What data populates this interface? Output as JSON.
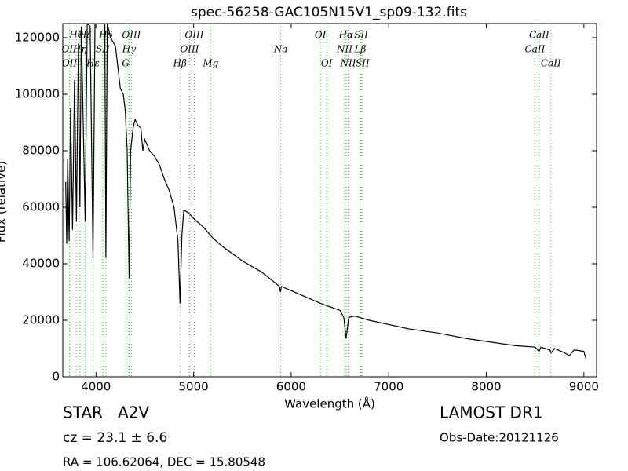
{
  "chart_data": {
    "type": "line",
    "title": "spec-56258-GAC105N15V1_sp09-132.fits",
    "xlabel": "Wavelength (Å)",
    "ylabel": "Flux (relative)",
    "xlim": [
      3660,
      9130
    ],
    "ylim": [
      0,
      125000
    ],
    "xticks": [
      4000,
      5000,
      6000,
      7000,
      8000,
      9000
    ],
    "yticks": [
      0,
      20000,
      40000,
      60000,
      80000,
      100000,
      120000
    ],
    "line_color": "#4a4",
    "x": [
      3690,
      3700,
      3710,
      3725,
      3740,
      3760,
      3780,
      3800,
      3820,
      3835,
      3850,
      3889,
      3910,
      3940,
      3970,
      3990,
      4060,
      4090,
      4102,
      4115,
      4150,
      4200,
      4250,
      4280,
      4300,
      4320,
      4340,
      4355,
      4380,
      4400,
      4430,
      4460,
      4480,
      4500,
      4550,
      4600,
      4650,
      4700,
      4750,
      4800,
      4840,
      4861,
      4880,
      4900,
      4950,
      5000,
      5100,
      5200,
      5300,
      5500,
      5700,
      5880,
      5890,
      5900,
      6100,
      6300,
      6500,
      6540,
      6563,
      6590,
      6650,
      6800,
      7000,
      7200,
      7500,
      7800,
      8000,
      8300,
      8500,
      8540,
      8560,
      8650,
      8665,
      8700,
      8800,
      8850,
      8900,
      9000,
      9020
    ],
    "series": [
      {
        "name": "flux",
        "color": "#000000",
        "values": [
          69000,
          47000,
          77000,
          48000,
          95000,
          52000,
          105000,
          55000,
          118000,
          60000,
          124000,
          55000,
          125000,
          124000,
          42000,
          125000,
          125000,
          125000,
          42000,
          125000,
          120000,
          117000,
          102000,
          100000,
          94000,
          80000,
          35000,
          80000,
          88000,
          91000,
          89000,
          88000,
          80000,
          84000,
          80000,
          78000,
          75000,
          70000,
          66000,
          60000,
          48000,
          26000,
          50000,
          59000,
          58000,
          56000,
          53000,
          49000,
          46000,
          41000,
          37000,
          32000,
          30000,
          32000,
          29000,
          26000,
          23500,
          21000,
          13500,
          21000,
          21500,
          20000,
          18500,
          17000,
          15500,
          13500,
          12500,
          11000,
          10500,
          9000,
          10500,
          9500,
          8500,
          10000,
          8500,
          7500,
          9500,
          9000,
          6500
        ]
      }
    ],
    "lines": [
      [
        {
          "label": "Hθ",
          "wavelength": 3798
        },
        {
          "label": "Hζ",
          "wavelength": 3889
        },
        {
          "label": "Hδ",
          "wavelength": 4102
        },
        {
          "label": "OIII",
          "wavelength": 4363
        },
        {
          "label": "OIII",
          "wavelength": 5007
        },
        {
          "label": "OI",
          "wavelength": 6300
        },
        {
          "label": "Hα",
          "wavelength": 6563
        },
        {
          "label": "SII",
          "wavelength": 6717
        },
        {
          "label": "CaII",
          "wavelength": 8542
        }
      ],
      [
        {
          "label": "OII",
          "wavelength": 3726
        },
        {
          "label": "Hη",
          "wavelength": 3835
        },
        {
          "label": "SII",
          "wavelength": 4069
        },
        {
          "label": "Hγ",
          "wavelength": 4340
        },
        {
          "label": "OIII",
          "wavelength": 4959
        },
        {
          "label": "Na",
          "wavelength": 5893
        },
        {
          "label": "NII",
          "wavelength": 6548
        },
        {
          "label": "Lβ",
          "wavelength": 6708
        },
        {
          "label": "CaII",
          "wavelength": 8498
        }
      ],
      [
        {
          "label": "OII",
          "wavelength": 3729
        },
        {
          "label": "Hε",
          "wavelength": 3970
        },
        {
          "label": "G",
          "wavelength": 4304
        },
        {
          "label": "Hβ",
          "wavelength": 4861
        },
        {
          "label": "Mg",
          "wavelength": 5175
        },
        {
          "label": "OI",
          "wavelength": 6364
        },
        {
          "label": "NII",
          "wavelength": 6584
        },
        {
          "label": "SII",
          "wavelength": 6731
        },
        {
          "label": "CaII",
          "wavelength": 8662
        }
      ]
    ],
    "object_class": "STAR   A2V",
    "redshift": "cz = 23.1 ± 6.6",
    "coords": "RA = 106.62064, DEC = 15.80548",
    "survey": "LAMOST DR1",
    "obs_date": "Obs-Date:20121126"
  }
}
